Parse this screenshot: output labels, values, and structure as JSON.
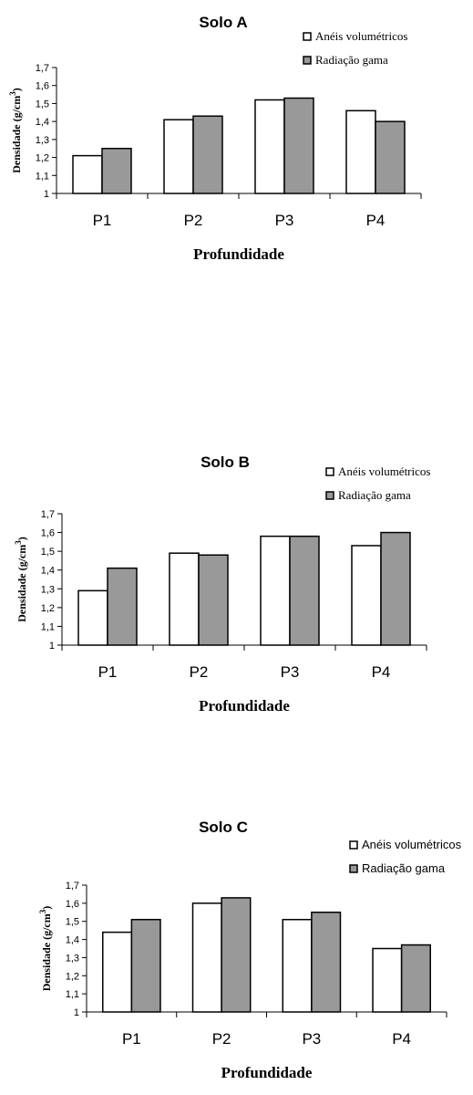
{
  "chart_data": [
    {
      "type": "bar",
      "title": "Solo A",
      "xlabel": "Profundidade",
      "ylabel": "Densidade (g/cm",
      "ylabel_sup": "3",
      "ylabel_close": ")",
      "categories": [
        "P1",
        "P2",
        "P3",
        "P4"
      ],
      "series": [
        {
          "name": "Anéis volumétricos",
          "color": "#ffffff",
          "values": [
            1.21,
            1.41,
            1.52,
            1.46
          ]
        },
        {
          "name": "Radiação gama",
          "color": "#999999",
          "values": [
            1.25,
            1.43,
            1.53,
            1.4
          ]
        }
      ],
      "ylim": [
        1,
        1.7
      ],
      "yticks": [
        "1",
        "1,1",
        "1,2",
        "1,3",
        "1,4",
        "1,5",
        "1,6",
        "1,7"
      ],
      "legend": "top-right",
      "grid": false
    },
    {
      "type": "bar",
      "title": "Solo B",
      "xlabel": "Profundidade",
      "ylabel": "Densidade (g/cm",
      "ylabel_sup": "3",
      "ylabel_close": ")",
      "categories": [
        "P1",
        "P2",
        "P3",
        "P4"
      ],
      "series": [
        {
          "name": "Anéis volumétricos",
          "color": "#ffffff",
          "values": [
            1.29,
            1.49,
            1.58,
            1.53
          ]
        },
        {
          "name": "Radiação gama",
          "color": "#999999",
          "values": [
            1.41,
            1.48,
            1.58,
            1.6
          ]
        }
      ],
      "ylim": [
        1,
        1.7
      ],
      "yticks": [
        "1",
        "1,1",
        "1,2",
        "1,3",
        "1,4",
        "1,5",
        "1,6",
        "1,7"
      ],
      "legend": "top-right",
      "grid": false
    },
    {
      "type": "bar",
      "title": "Solo C",
      "xlabel": "Profundidade",
      "ylabel": "Densidade (g/cm",
      "ylabel_sup": "3",
      "ylabel_close": ")",
      "categories": [
        "P1",
        "P2",
        "P3",
        "P4"
      ],
      "series": [
        {
          "name": "Anéis volumétricos",
          "color": "#ffffff",
          "values": [
            1.44,
            1.6,
            1.51,
            1.35
          ]
        },
        {
          "name": "Radiação gama",
          "color": "#999999",
          "values": [
            1.51,
            1.63,
            1.55,
            1.37
          ]
        }
      ],
      "ylim": [
        1,
        1.7
      ],
      "yticks": [
        "1",
        "1,1",
        "1,2",
        "1,3",
        "1,4",
        "1,5",
        "1,6",
        "1,7"
      ],
      "legend": "top-right",
      "grid": false
    }
  ]
}
